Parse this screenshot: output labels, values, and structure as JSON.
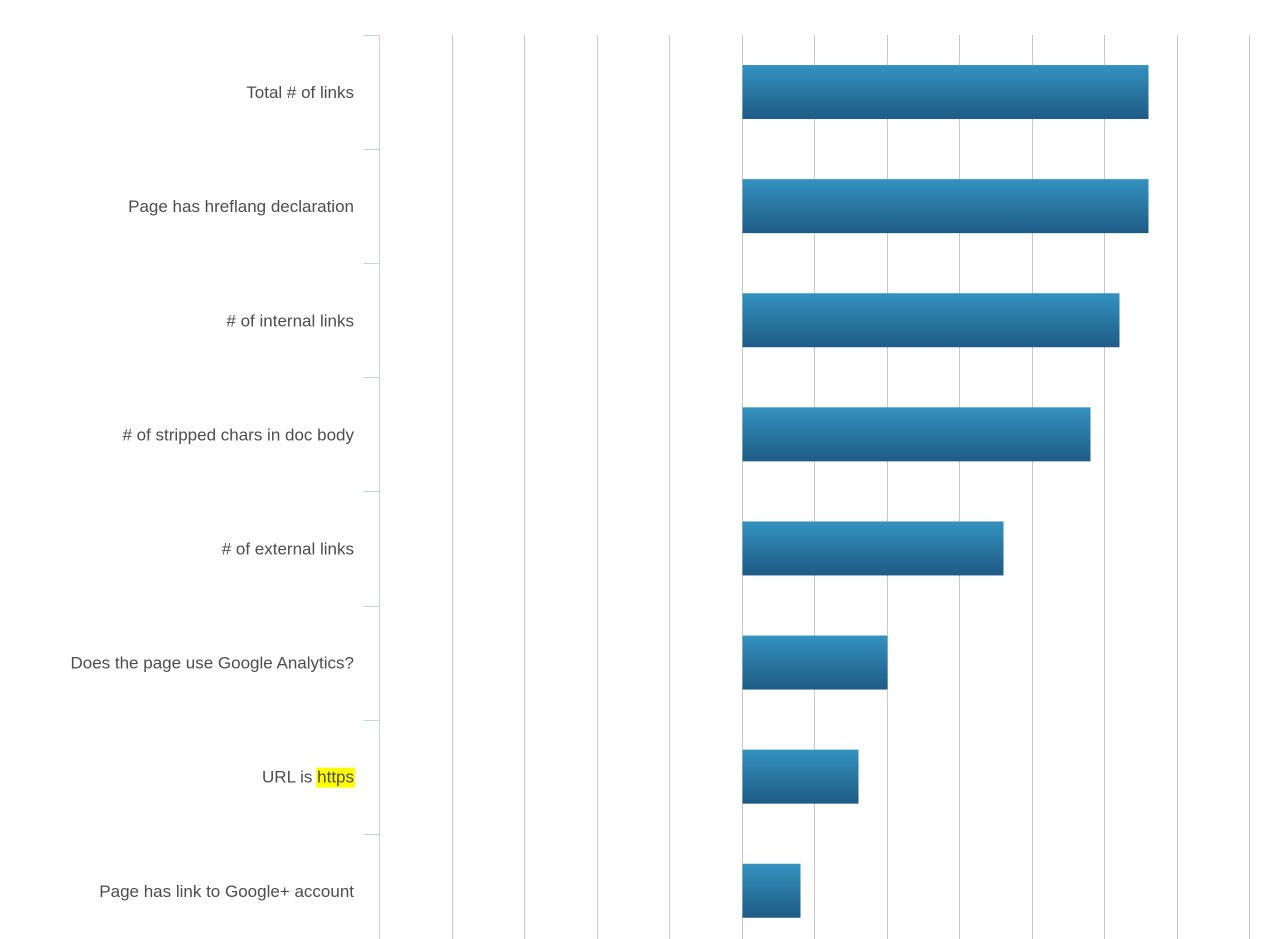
{
  "chart_data": {
    "type": "bar",
    "orientation": "horizontal",
    "title": "",
    "xlabel": "",
    "ylabel": "",
    "categories": [
      "Total # of links",
      "Page has hreflang declaration",
      "# of internal links",
      "# of stripped chars in doc body",
      "# of external links",
      "Does the page use Google Analytics?",
      "URL is https",
      "Page has link to Google+ account"
    ],
    "values": [
      0.56,
      0.56,
      0.52,
      0.48,
      0.36,
      0.2,
      0.16,
      0.08
    ],
    "xlim": [
      -0.5,
      0.7
    ],
    "gridlines_x": [
      -0.5,
      -0.4,
      -0.3,
      -0.2,
      -0.1,
      0,
      0.1,
      0.2,
      0.3,
      0.4,
      0.5,
      0.6,
      0.7
    ],
    "grid": true,
    "legend": "none",
    "highlight": {
      "category_index": 6,
      "text": "https",
      "color": "#ffff00"
    },
    "colors": {
      "bar_top": "#3492bf",
      "bar_bottom": "#1f5b86",
      "grid": "#c8c8c8",
      "axis": "#c5d3e5",
      "label": "#4d4d4d"
    }
  }
}
